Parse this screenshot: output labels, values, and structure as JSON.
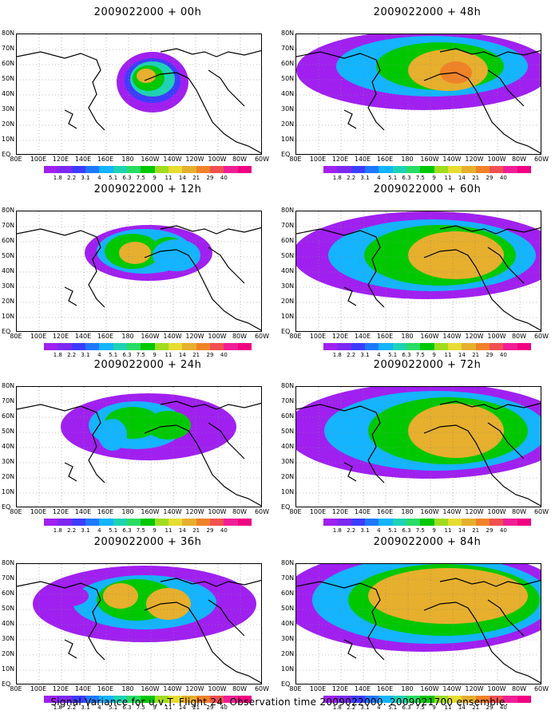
{
  "caption": "Signal Variance for u,v,T. Flight 24. Observation time 2009022000. 2009021700 ensemble.",
  "lat_labels": [
    "80N",
    "70N",
    "60N",
    "50N",
    "40N",
    "30N",
    "20N",
    "10N",
    "EQ"
  ],
  "lat_labels_visible": [
    "80N",
    "70N",
    "60N",
    "50N",
    "40N",
    "30N",
    "20N",
    "10N",
    "EQ"
  ],
  "lon_labels": [
    "80E",
    "100E",
    "120E",
    "140E",
    "160E",
    "180",
    "160W",
    "140W",
    "120W",
    "100W",
    "80W",
    "60W"
  ],
  "colorbar": {
    "labels": [
      "1.8",
      "2.2",
      "3.1",
      "4",
      "5.1",
      "6.3",
      "7.5",
      "9",
      "11",
      "14",
      "21",
      "29",
      "40"
    ],
    "colors": [
      "#a020f0",
      "#7d28f0",
      "#3c3cff",
      "#1e78ff",
      "#14b4ff",
      "#1ed2b4",
      "#28dc64",
      "#00c800",
      "#a0dc1e",
      "#e6dc32",
      "#e6af2d",
      "#f08228",
      "#f05050",
      "#f01e96",
      "#f00082"
    ]
  },
  "panels": [
    {
      "title": "2009022000 + 00h"
    },
    {
      "title": "2009022000 + 12h"
    },
    {
      "title": "2009022000 + 24h"
    },
    {
      "title": "2009022000 + 36h"
    },
    {
      "title": "2009022000 + 48h"
    },
    {
      "title": "2009022000 + 60h"
    },
    {
      "title": "2009022000 + 72h"
    },
    {
      "title": "2009022000 + 84h"
    }
  ]
}
